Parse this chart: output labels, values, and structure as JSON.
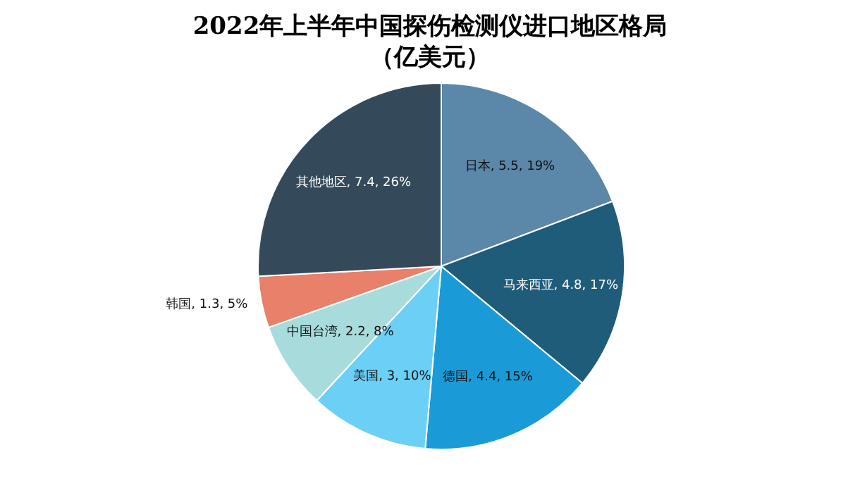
{
  "chart_data": {
    "type": "pie",
    "title": "2022年上半年中国探伤检测仪进口地区格局",
    "subtitle": "（亿美元）",
    "categories": [
      "日本",
      "马来西亚",
      "德国",
      "美国",
      "中国台湾",
      "韩国",
      "其他地区"
    ],
    "values": [
      5.5,
      4.8,
      4.4,
      3,
      2.2,
      1.3,
      7.4
    ],
    "value_labels": [
      "5.5, 19%",
      "4.8, 17%",
      "4.4, 15%",
      "3, 10%",
      "2.2, 8%",
      "1.3, 5%",
      "7.4, 26%"
    ],
    "colors": [
      "#5b87a8",
      "#1f5c7a",
      "#1a9bd7",
      "#6ccff6",
      "#a8dcdc",
      "#e8806a",
      "#344a5a"
    ],
    "legend": false
  }
}
